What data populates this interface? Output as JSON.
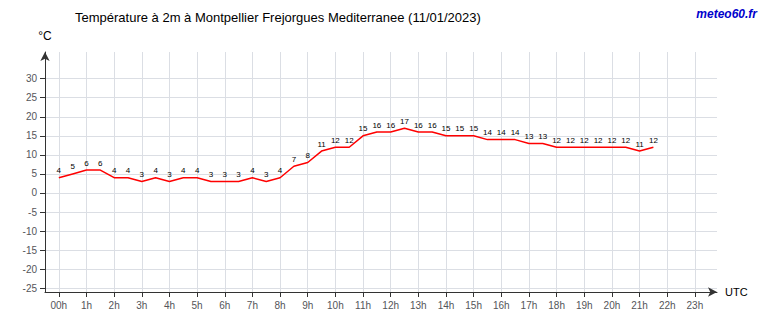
{
  "chart_data": {
    "type": "line",
    "title": "Température à 2m à Montpellier Frejorgues Mediterranee (11/01/2023)",
    "x_label": "UTC",
    "y_label": "°C",
    "annotations": [
      {
        "text": "meteo60.fr",
        "color": "#0000cc"
      }
    ],
    "x": [
      0,
      0.5,
      1,
      1.5,
      2,
      2.5,
      3,
      3.5,
      4,
      4.5,
      5,
      5.5,
      6,
      6.5,
      7,
      7.5,
      8,
      8.5,
      9,
      9.5,
      10,
      10.5,
      11,
      11.5,
      12,
      12.5,
      13,
      13.5,
      14,
      14.5,
      15,
      15.5,
      16,
      16.5,
      17,
      17.5,
      18,
      18.5,
      19,
      19.5,
      20,
      20.5,
      21,
      21.5
    ],
    "values": [
      4,
      5,
      6,
      6,
      4,
      4,
      3,
      4,
      3,
      4,
      4,
      3,
      3,
      3,
      4,
      3,
      4,
      7,
      8,
      11,
      12,
      12,
      15,
      16,
      16,
      17,
      16,
      16,
      15,
      15,
      15,
      14,
      14,
      14,
      13,
      13,
      12,
      12,
      12,
      12,
      12,
      12,
      11,
      12
    ],
    "color": "#ff0000",
    "xlim": [
      -0.5,
      23.8
    ],
    "xticks": [
      {
        "value": 0,
        "label": "00h"
      },
      {
        "value": 1,
        "label": "1h"
      },
      {
        "value": 2,
        "label": "2h"
      },
      {
        "value": 3,
        "label": "3h"
      },
      {
        "value": 4,
        "label": "4h"
      },
      {
        "value": 5,
        "label": "5h"
      },
      {
        "value": 6,
        "label": "6h"
      },
      {
        "value": 7,
        "label": "7h"
      },
      {
        "value": 8,
        "label": "8h"
      },
      {
        "value": 9,
        "label": "9h"
      },
      {
        "value": 10,
        "label": "10h"
      },
      {
        "value": 11,
        "label": "11h"
      },
      {
        "value": 12,
        "label": "12h"
      },
      {
        "value": 13,
        "label": "13h"
      },
      {
        "value": 14,
        "label": "14h"
      },
      {
        "value": 15,
        "label": "15h"
      },
      {
        "value": 16,
        "label": "16h"
      },
      {
        "value": 17,
        "label": "17h"
      },
      {
        "value": 18,
        "label": "18h"
      },
      {
        "value": 19,
        "label": "19h"
      },
      {
        "value": 20,
        "label": "20h"
      },
      {
        "value": 21,
        "label": "21h"
      },
      {
        "value": 22,
        "label": "22h"
      },
      {
        "value": 23,
        "label": "23h"
      }
    ],
    "ylim": [
      -26,
      37
    ],
    "yticks": [
      -25,
      -20,
      -15,
      -10,
      -5,
      0,
      5,
      10,
      15,
      20,
      25,
      30
    ],
    "grid": true,
    "data_labels": true
  }
}
